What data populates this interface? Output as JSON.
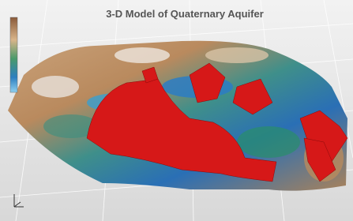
{
  "title": "3-D Model of Quaternary Aquifer"
}
